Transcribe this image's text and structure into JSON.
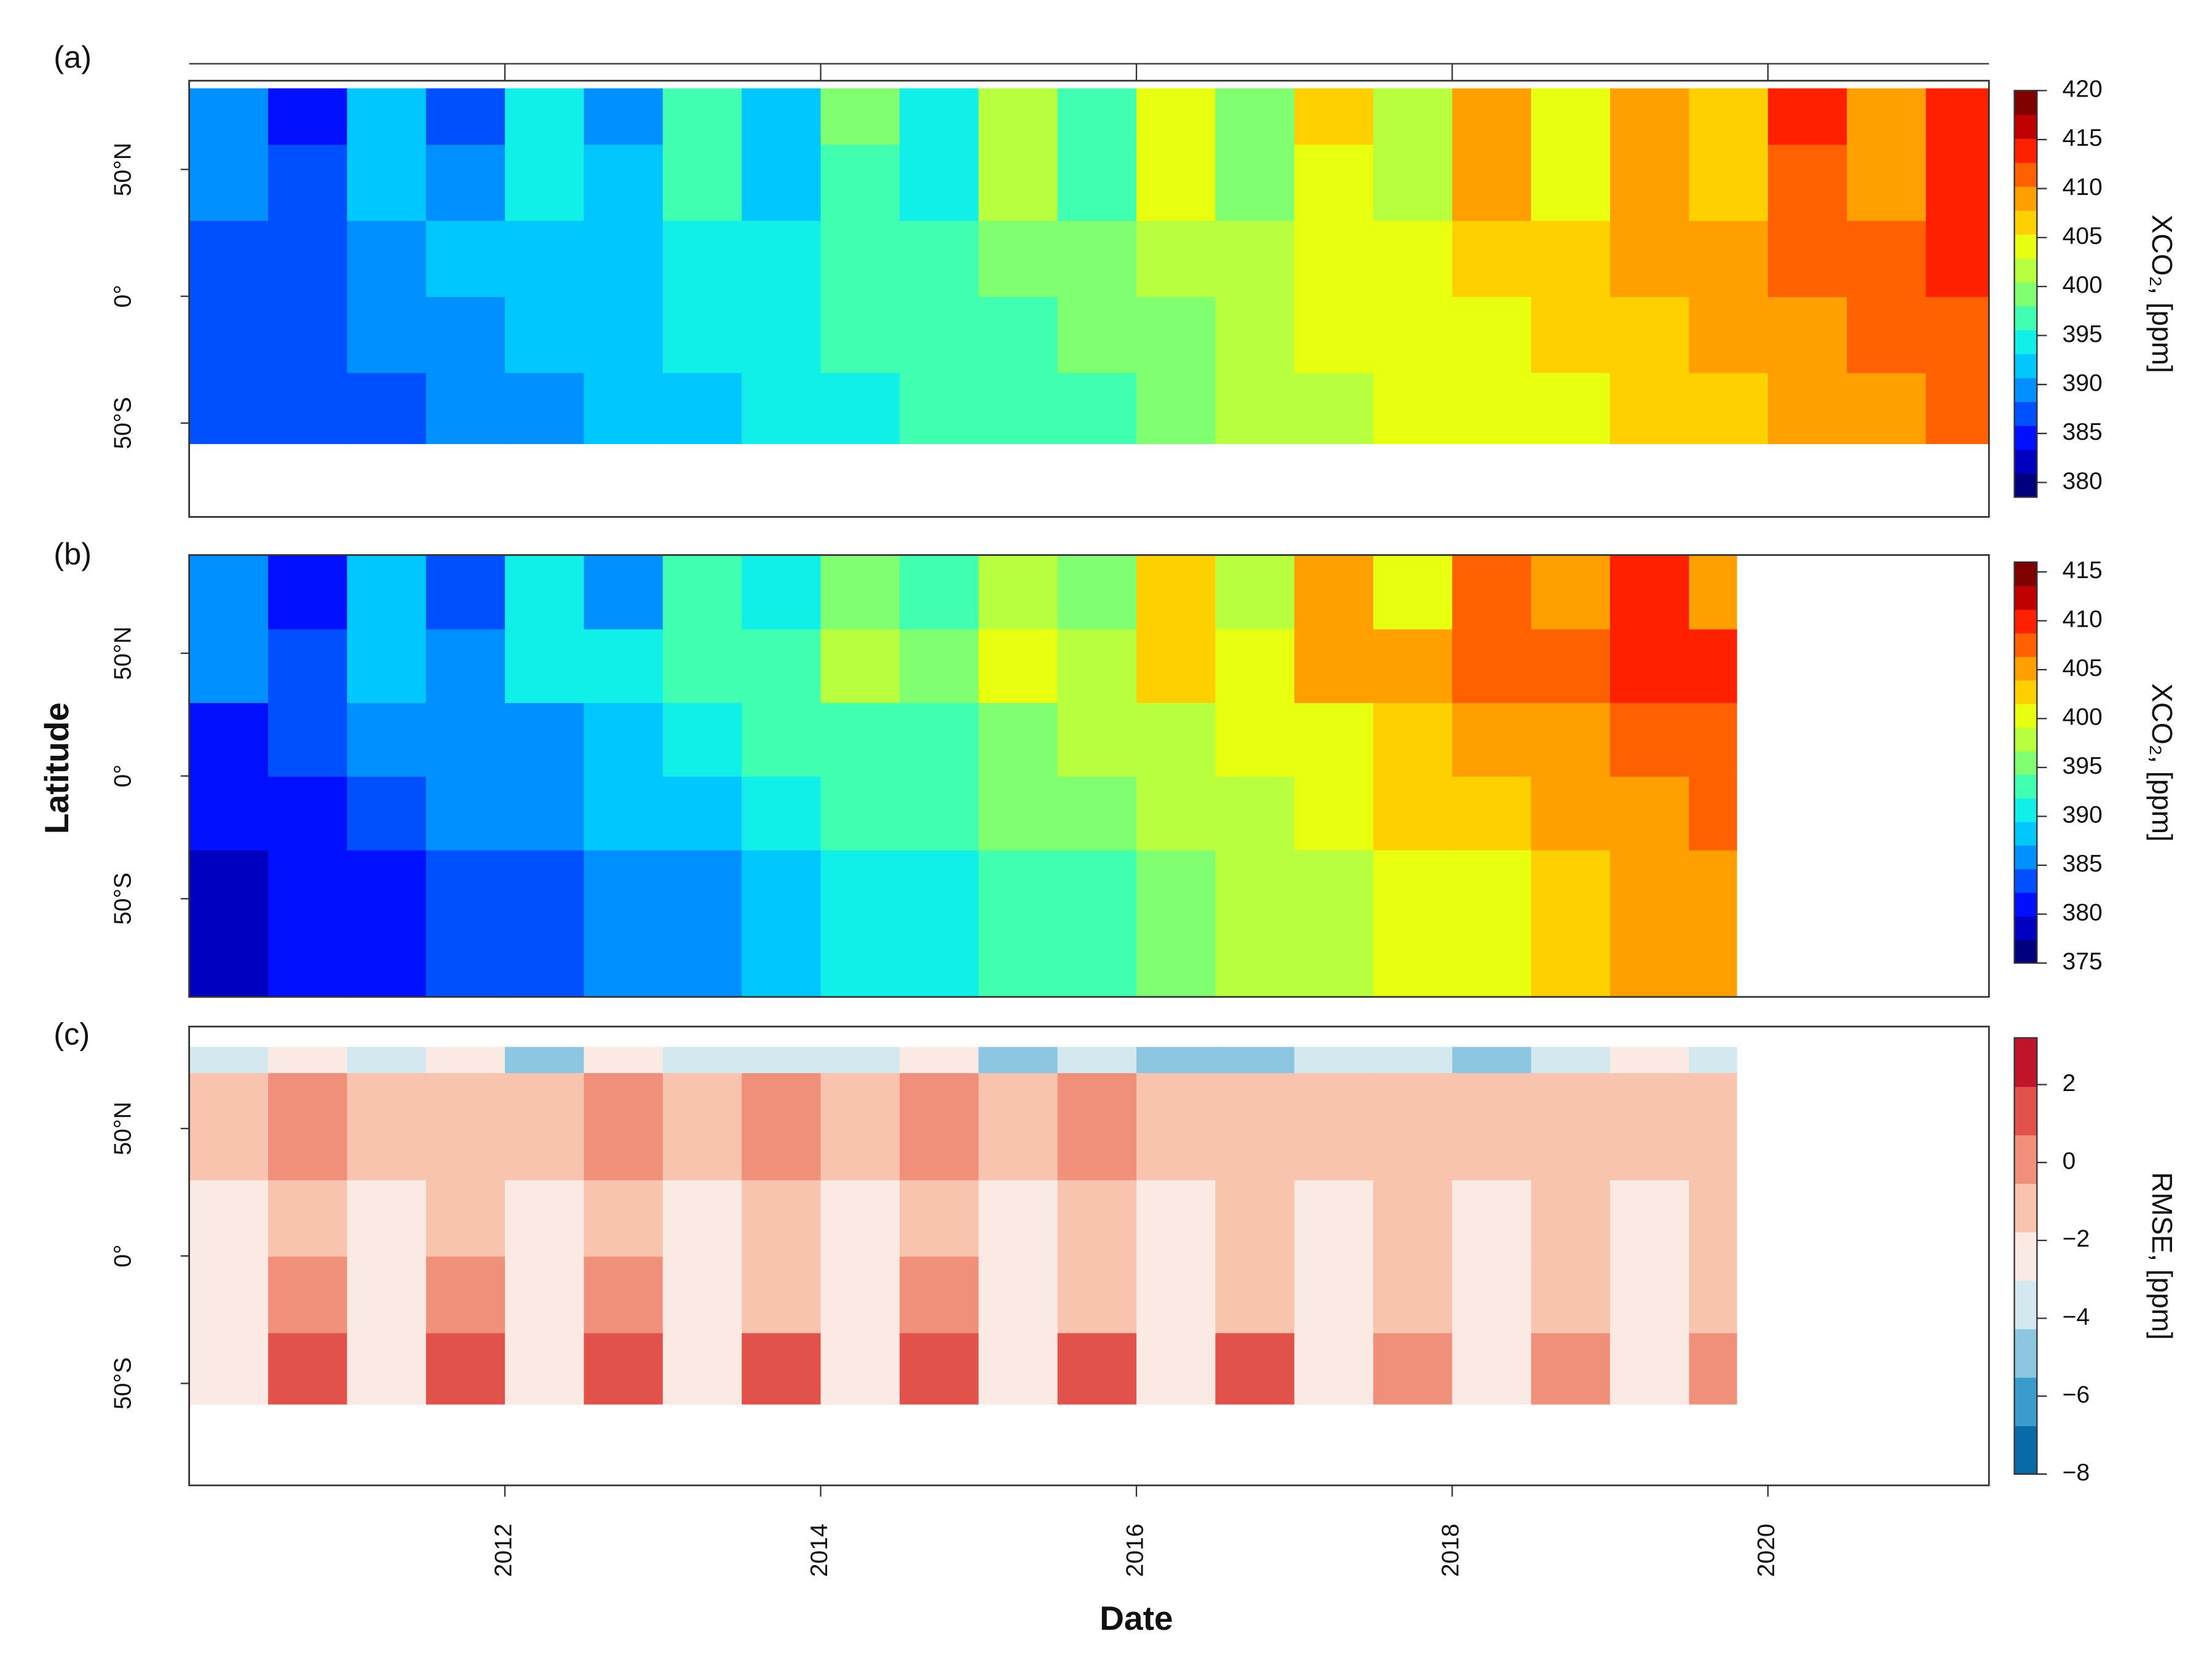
{
  "chart_data": [
    {
      "type": "heatmap",
      "panel_label": "(a)",
      "x_edges": [
        2010,
        2010.5,
        2011,
        2011.5,
        2012,
        2012.5,
        2013,
        2013.5,
        2014,
        2014.5,
        2015,
        2015.5,
        2016,
        2016.5,
        2017,
        2017.5,
        2018,
        2018.5,
        2019,
        2019.5,
        2020,
        2020.5,
        2021,
        2021.4
      ],
      "y_edges": [
        -58,
        -30,
        0,
        30,
        60,
        82
      ],
      "z": [
        [
          386,
          387,
          388,
          389,
          390,
          391,
          393,
          394,
          395,
          396,
          397,
          398,
          399,
          401,
          402,
          403,
          404,
          405,
          406,
          407,
          409,
          410,
          411
        ],
        [
          387,
          388,
          389,
          390,
          391,
          392,
          394,
          395,
          396,
          397,
          398,
          399,
          400,
          402,
          403,
          404,
          405,
          406,
          407,
          408,
          410,
          411,
          412
        ],
        [
          388,
          388,
          390,
          391,
          393,
          393,
          395,
          395,
          397,
          397,
          400,
          400,
          402,
          402,
          404,
          404,
          407,
          407,
          409,
          409,
          411,
          411,
          413
        ],
        [
          389,
          386,
          391,
          389,
          394,
          391,
          396,
          393,
          398,
          395,
          401,
          398,
          403,
          400,
          405,
          402,
          408,
          405,
          410,
          407,
          412,
          409,
          414
        ],
        [
          390,
          385,
          392,
          388,
          394,
          390,
          397,
          392,
          399,
          394,
          401,
          397,
          403,
          399,
          406,
          401,
          408,
          404,
          410,
          406,
          413,
          408,
          415
        ]
      ],
      "xlim": [
        2010,
        2021.4
      ],
      "ylim": [
        -87,
        85
      ],
      "yticks": [
        {
          "value": -50,
          "label": "50°S"
        },
        {
          "value": 0,
          "label": "0°"
        },
        {
          "value": 50,
          "label": "50°N"
        }
      ],
      "zlim": [
        378.5,
        420
      ],
      "zticks": [
        380,
        385,
        390,
        395,
        400,
        405,
        410,
        415,
        420
      ],
      "colorbar_label": "XCO₂, [ppm]",
      "colors": [
        "#00007f",
        "#0000c0",
        "#0010ff",
        "#0050ff",
        "#0090ff",
        "#00c8ff",
        "#10f0e8",
        "#40ffb0",
        "#80ff70",
        "#b8ff40",
        "#e8ff10",
        "#ffd000",
        "#ffa000",
        "#ff6000",
        "#ff2000",
        "#c00000",
        "#800000"
      ]
    },
    {
      "type": "heatmap",
      "panel_label": "(b)",
      "y_label": "Latitude",
      "x_edges": [
        2010,
        2010.5,
        2011,
        2011.5,
        2012,
        2012.5,
        2013,
        2013.5,
        2014,
        2014.5,
        2015,
        2015.5,
        2016,
        2016.5,
        2017,
        2017.5,
        2018,
        2018.5,
        2019,
        2019.5,
        2019.8
      ],
      "y_edges": [
        -90,
        -30,
        0,
        30,
        60,
        90
      ],
      "z": [
        [
          379,
          380,
          382,
          383,
          384,
          386,
          387,
          389,
          390,
          391,
          393,
          394,
          396,
          397,
          398,
          400,
          401,
          403,
          404,
          405
        ],
        [
          381,
          382,
          384,
          385,
          386,
          388,
          389,
          391,
          392,
          393,
          395,
          396,
          398,
          399,
          400,
          402,
          403,
          405,
          406,
          407
        ],
        [
          382,
          383,
          385,
          386,
          387,
          389,
          390,
          392,
          393,
          394,
          396,
          397,
          399,
          400,
          401,
          403,
          404,
          406,
          407,
          408
        ],
        [
          386,
          384,
          389,
          387,
          391,
          390,
          394,
          393,
          397,
          395,
          400,
          398,
          403,
          401,
          405,
          404,
          408,
          407,
          411,
          409
        ],
        [
          385,
          381,
          388,
          384,
          390,
          387,
          393,
          390,
          396,
          392,
          399,
          395,
          402,
          398,
          404,
          401,
          407,
          404,
          410,
          406
        ]
      ],
      "xlim": [
        2010,
        2021.4
      ],
      "ylim": [
        -90,
        90
      ],
      "yticks": [
        {
          "value": -50,
          "label": "50°S"
        },
        {
          "value": 0,
          "label": "0°"
        },
        {
          "value": 50,
          "label": "50°N"
        }
      ],
      "zlim": [
        375,
        416
      ],
      "zticks": [
        375,
        380,
        385,
        390,
        395,
        400,
        405,
        410,
        415
      ],
      "colorbar_label": "XCO₂, [ppm]",
      "colors": [
        "#00007f",
        "#0000c0",
        "#0010ff",
        "#0050ff",
        "#0090ff",
        "#00c8ff",
        "#10f0e8",
        "#40ffb0",
        "#80ff70",
        "#b8ff40",
        "#e8ff10",
        "#ffd000",
        "#ffa000",
        "#ff6000",
        "#ff2000",
        "#c00000",
        "#800000"
      ]
    },
    {
      "type": "heatmap",
      "panel_label": "(c)",
      "x_label": "Date",
      "x_edges": [
        2010,
        2010.5,
        2011,
        2011.5,
        2012,
        2012.5,
        2013,
        2013.5,
        2014,
        2014.5,
        2015,
        2015.5,
        2016,
        2016.5,
        2017,
        2017.5,
        2018,
        2018.5,
        2019,
        2019.5,
        2019.8
      ],
      "y_edges": [
        -58,
        -30,
        0,
        30,
        72,
        82
      ],
      "z": [
        [
          -3,
          0.8,
          -3,
          1.5,
          -3,
          1.4,
          -3,
          1.2,
          -3,
          1.3,
          -3,
          1.1,
          -3,
          0.9,
          -3,
          0.6,
          -3,
          0.7,
          -3,
          0.5
        ],
        [
          -2,
          -0.5,
          -2,
          -0.2,
          -2,
          -0.4,
          -2,
          -0.6,
          -2,
          -0.5,
          -2,
          -0.8,
          -2,
          -0.9,
          -2,
          -1,
          -2,
          -1,
          -2,
          -1.1
        ],
        [
          -1.8,
          -1.2,
          -1.8,
          -1.2,
          -1.8,
          -1.2,
          -1.8,
          -1.2,
          -1.8,
          -1.2,
          -1.8,
          -1.2,
          -1.8,
          -1.2,
          -1.8,
          -1.2,
          -1.8,
          -1.2,
          -1.8,
          -1.2
        ],
        [
          -1.5,
          -0.5,
          -1.5,
          -0.6,
          -1.5,
          -0.4,
          -1.5,
          -0.5,
          -1.5,
          -0.3,
          -1.5,
          -0.5,
          -1.5,
          -0.7,
          -1.5,
          -0.8,
          -1.5,
          -0.9,
          -1.5,
          -0.8
        ],
        [
          -3.5,
          -3,
          -4,
          -3,
          -4.5,
          -3,
          -4,
          -3.5,
          -4,
          -3,
          -5,
          -4,
          -4.5,
          -5,
          -3.5,
          -3.5,
          -4.5,
          -4,
          -3,
          -3.5
        ]
      ],
      "xlim": [
        2010,
        2021.4
      ],
      "ylim": [
        -90,
        90
      ],
      "xticks": [
        2012,
        2014,
        2016,
        2018,
        2020
      ],
      "yticks": [
        {
          "value": -50,
          "label": "50°S"
        },
        {
          "value": 0,
          "label": "0°"
        },
        {
          "value": 50,
          "label": "50°N"
        }
      ],
      "zlim": [
        -8,
        3.2
      ],
      "zticks": [
        {
          "value": -8,
          "label": "−8"
        },
        {
          "value": -6,
          "label": "−6"
        },
        {
          "value": -4,
          "label": "−4"
        },
        {
          "value": -2,
          "label": "−2"
        },
        0,
        2
      ],
      "colorbar_label": "RMSE, [ppm]",
      "colors": [
        "#0a6aa8",
        "#3a9ccc",
        "#8cc6e0",
        "#d4e8f0",
        "#fbeae3",
        "#f9c4ad",
        "#f0907a",
        "#e0524a",
        "#c0142a"
      ]
    }
  ]
}
